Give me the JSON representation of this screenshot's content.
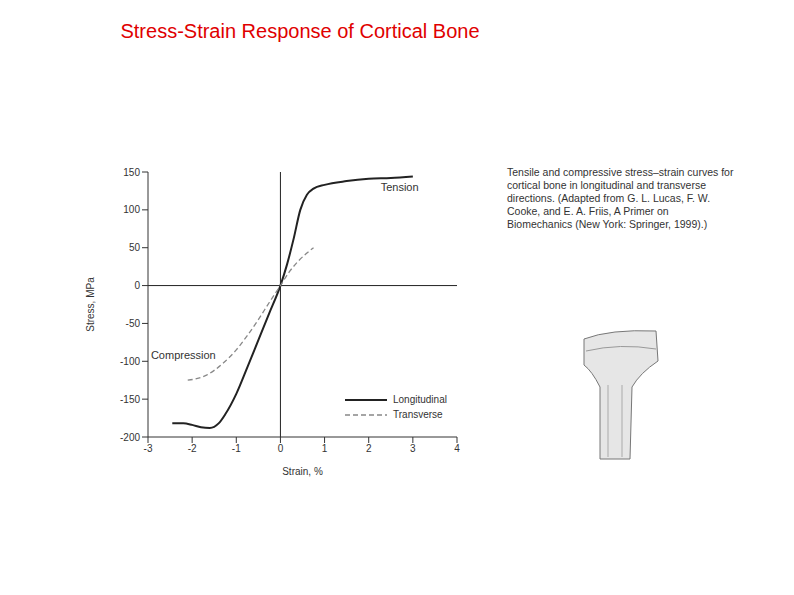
{
  "chart_data": {
    "type": "line",
    "title": "Stress-Strain Response of Cortical Bone",
    "note": "Tensile and compressive stress–strain curves for cortical bone in longitudinal and transverse directions. (Adapted from G. L. Lucas, F. W. Cooke, and E. A. Friis, A Primer on Biomechanics (New York: Springer, 1999).)",
    "x_label": "Strain, %",
    "y_label": "Stress, MPa",
    "xlim": [
      -3,
      4
    ],
    "ylim": [
      -200,
      150
    ],
    "xticks": [
      -3,
      -2,
      -1,
      0,
      1,
      2,
      3,
      4
    ],
    "yticks": [
      -200,
      -150,
      -100,
      -50,
      0,
      50,
      100,
      150
    ],
    "legend": "lower right",
    "annotations": [
      {
        "text": "Tension",
        "x": 2.7,
        "y": 130
      },
      {
        "text": "Compression",
        "x": -2.2,
        "y": -92
      }
    ],
    "series": [
      {
        "name": "Longitudinal",
        "color": "#222222",
        "line_style": "solid",
        "x": [
          -2.45,
          -2.2,
          -2.0,
          -1.8,
          -1.6,
          -1.4,
          -1.25,
          -1.0,
          -0.75,
          -0.5,
          -0.25,
          0,
          0.15,
          0.3,
          0.45,
          0.6,
          0.75,
          1.0,
          1.5,
          2.0,
          2.5,
          3.0
        ],
        "values": [
          -182,
          -182,
          -184,
          -187,
          -188,
          -182,
          -170,
          -143,
          -108,
          -72,
          -36,
          0,
          28,
          62,
          100,
          120,
          128,
          133,
          138,
          141,
          142,
          144
        ]
      },
      {
        "name": "Transverse",
        "color": "#888888",
        "line_style": "dashed",
        "x": [
          -2.1,
          -1.9,
          -1.7,
          -1.5,
          -1.25,
          -1.0,
          -0.75,
          -0.5,
          -0.25,
          0,
          0.2,
          0.4,
          0.6,
          0.75
        ],
        "values": [
          -125,
          -123,
          -119,
          -112,
          -100,
          -85,
          -66,
          -45,
          -22,
          0,
          18,
          32,
          43,
          50
        ]
      }
    ]
  }
}
